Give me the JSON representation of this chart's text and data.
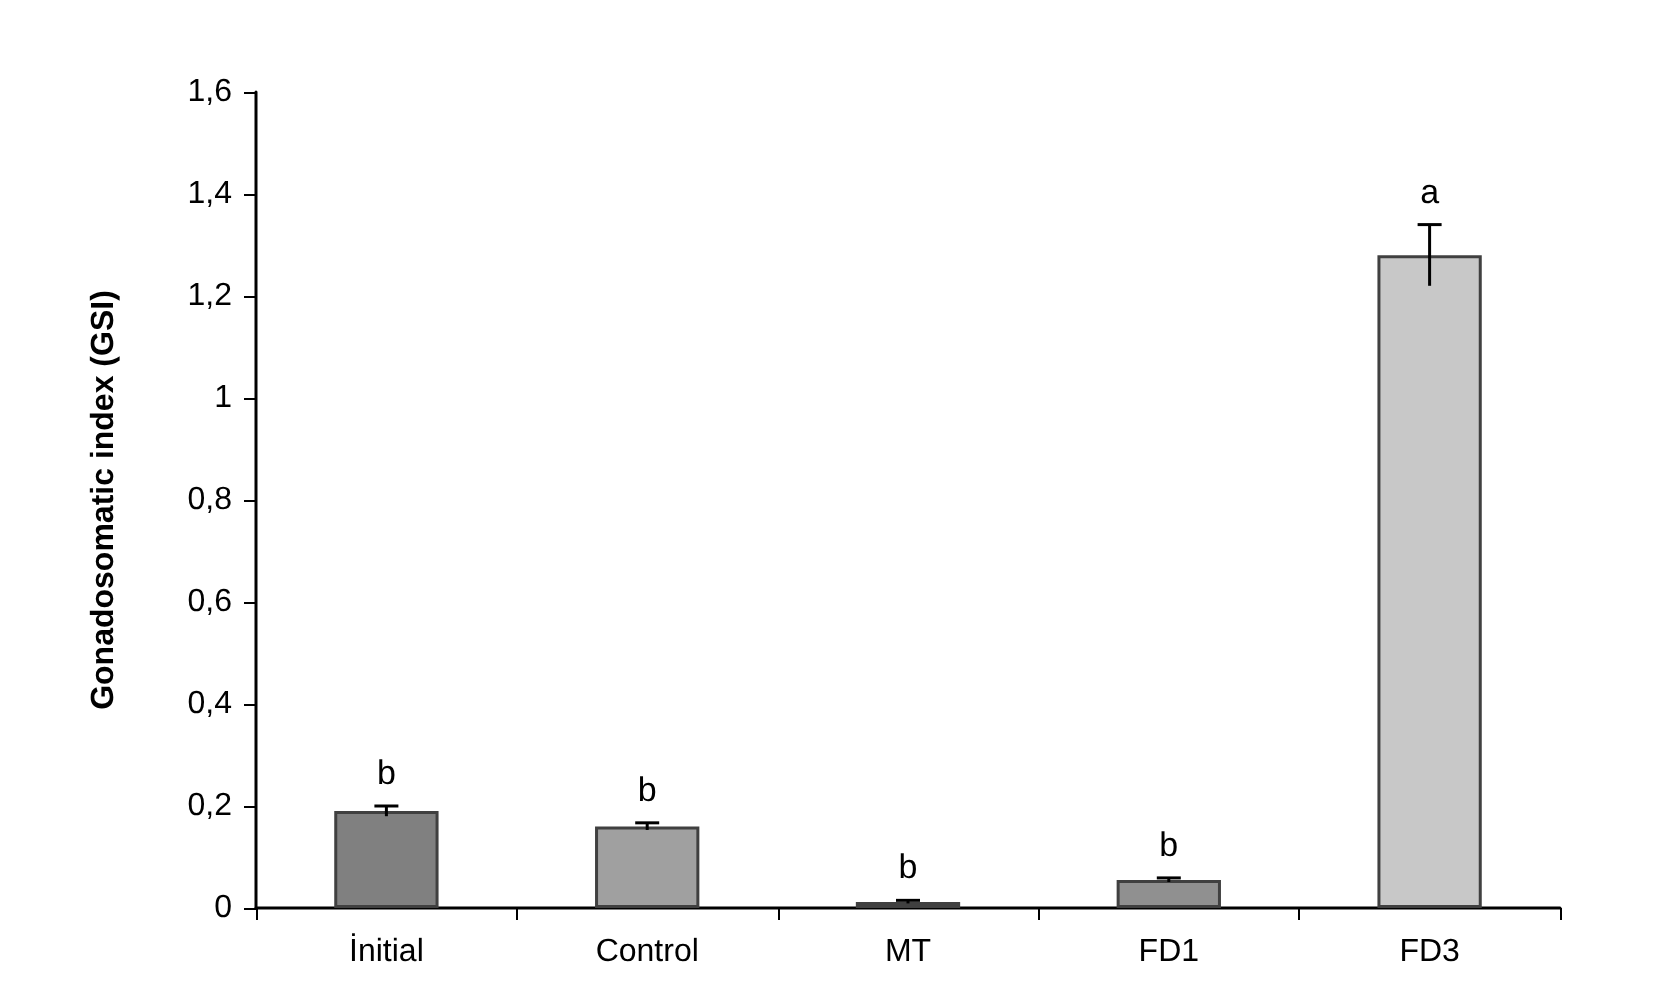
{
  "chart_data": {
    "type": "bar",
    "ylabel": "Gonadosomatic index (GSI)",
    "categories": [
      "İnitial",
      "Control",
      "MT",
      "FD1",
      "FD3"
    ],
    "values": [
      0.19,
      0.16,
      0.012,
      0.055,
      1.28
    ],
    "errors": [
      0.01,
      0.007,
      0.003,
      0.004,
      0.06
    ],
    "colors": [
      "#808080",
      "#a0a0a0",
      "#404040",
      "#909090",
      "#c8c8c8"
    ],
    "ylim": [
      0,
      1.6
    ],
    "yticks": [
      0,
      {
        "value": 0.2,
        "label": "0,2"
      },
      {
        "value": 0.4,
        "label": "0,4"
      },
      {
        "value": 0.6,
        "label": "0,6"
      },
      {
        "value": 0.8,
        "label": "0,8"
      },
      1,
      {
        "value": 1.2,
        "label": "1,2"
      },
      {
        "value": 1.4,
        "label": "1,4"
      },
      {
        "value": 1.6,
        "label": "1,6"
      }
    ],
    "annotations": [
      "b",
      "b",
      "b",
      "b",
      "a"
    ],
    "grid": false
  }
}
